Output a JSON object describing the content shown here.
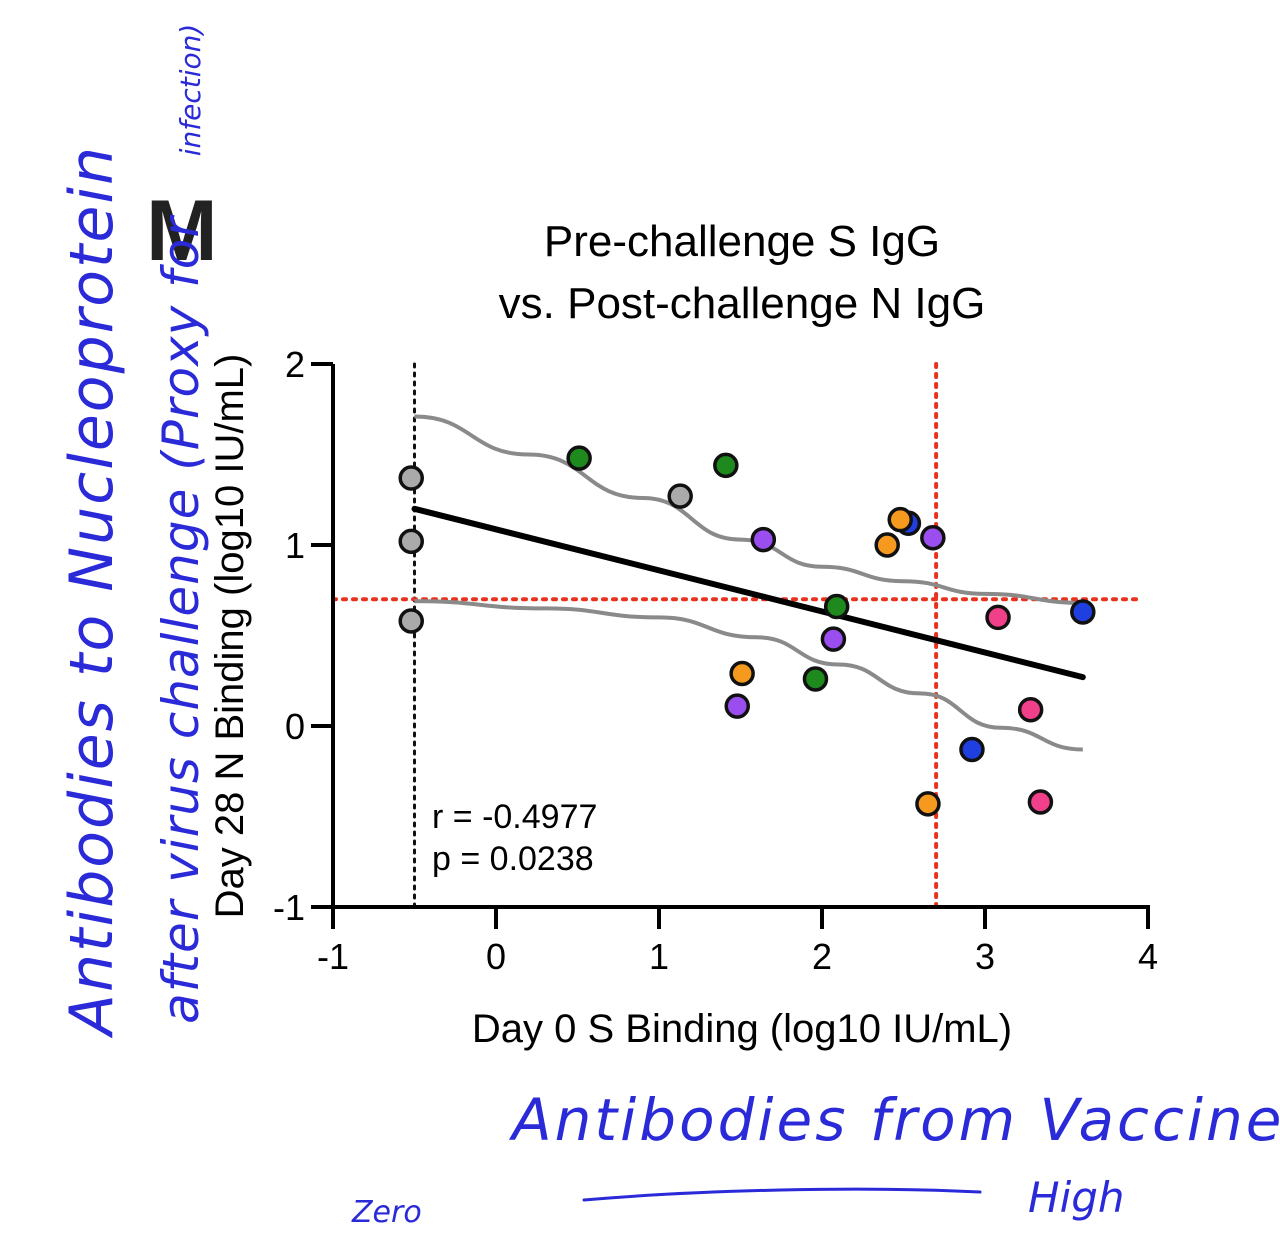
{
  "panel_label": "M",
  "chart_data": {
    "type": "scatter",
    "title_lines": [
      "Pre-challenge S IgG",
      "vs. Post-challenge N IgG"
    ],
    "xlabel": "Day 0 S Binding (log10 IU/mL)",
    "ylabel": "Day 28 N Binding (log10 IU/mL)",
    "xlim": [
      -1,
      4
    ],
    "ylim": [
      -1,
      2
    ],
    "xticks": [
      -1,
      0,
      1,
      2,
      3,
      4
    ],
    "yticks": [
      -1,
      0,
      1,
      2
    ],
    "xtick_labels": [
      "-1",
      "0",
      "1",
      "2",
      "3",
      "4"
    ],
    "ytick_labels": [
      "-1",
      "0",
      "1",
      "2"
    ],
    "stats": [
      "r = -0.4977",
      "p = 0.0238"
    ],
    "reference_lines": {
      "vertical_black_x": -0.5,
      "vertical_red_x": 2.7,
      "horizontal_red_y": 0.7
    },
    "regression": {
      "x": [
        -0.5,
        3.6
      ],
      "y": [
        1.2,
        0.27
      ]
    },
    "ci_upper": {
      "x": [
        -0.5,
        0.2,
        0.9,
        1.5,
        2.0,
        2.5,
        3.0,
        3.6
      ],
      "y": [
        1.71,
        1.5,
        1.26,
        1.03,
        0.88,
        0.8,
        0.73,
        0.68
      ]
    },
    "ci_lower": {
      "x": [
        -0.5,
        0.3,
        1.0,
        1.6,
        2.1,
        2.6,
        3.1,
        3.6
      ],
      "y": [
        0.69,
        0.65,
        0.6,
        0.49,
        0.34,
        0.18,
        -0.01,
        -0.13
      ]
    },
    "points": [
      {
        "x": -0.52,
        "y": 1.37,
        "color": "#aaaaaa"
      },
      {
        "x": -0.52,
        "y": 1.02,
        "color": "#aaaaaa"
      },
      {
        "x": -0.52,
        "y": 0.58,
        "color": "#aaaaaa"
      },
      {
        "x": 0.51,
        "y": 1.48,
        "color": "#1e8a1e"
      },
      {
        "x": 1.13,
        "y": 1.27,
        "color": "#aaaaaa"
      },
      {
        "x": 1.41,
        "y": 1.44,
        "color": "#1e8a1e"
      },
      {
        "x": 1.64,
        "y": 1.03,
        "color": "#9a4ef0"
      },
      {
        "x": 2.09,
        "y": 0.66,
        "color": "#1e8a1e"
      },
      {
        "x": 2.07,
        "y": 0.48,
        "color": "#9a4ef0"
      },
      {
        "x": 1.51,
        "y": 0.29,
        "color": "#f59a1e"
      },
      {
        "x": 1.48,
        "y": 0.11,
        "color": "#9a4ef0"
      },
      {
        "x": 1.96,
        "y": 0.26,
        "color": "#1e8a1e"
      },
      {
        "x": 2.4,
        "y": 1.0,
        "color": "#f59a1e"
      },
      {
        "x": 2.53,
        "y": 1.12,
        "color": "#1f3fe0"
      },
      {
        "x": 2.48,
        "y": 1.14,
        "color": "#f59a1e"
      },
      {
        "x": 2.68,
        "y": 1.04,
        "color": "#9a4ef0"
      },
      {
        "x": 3.08,
        "y": 0.6,
        "color": "#f0408a"
      },
      {
        "x": 3.6,
        "y": 0.63,
        "color": "#1f3fe0"
      },
      {
        "x": 3.28,
        "y": 0.09,
        "color": "#f0408a"
      },
      {
        "x": 2.92,
        "y": -0.13,
        "color": "#1f3fe0"
      },
      {
        "x": 2.65,
        "y": -0.43,
        "color": "#f59a1e"
      },
      {
        "x": 3.34,
        "y": -0.42,
        "color": "#f0408a"
      }
    ]
  },
  "annotations": {
    "left_line1": "Antibodies to Nucleoprotein",
    "left_line2": "after virus challenge (Proxy for",
    "left_line3": "infection)",
    "bottom_main": "Antibodies from Vaccine",
    "zero": "Zero",
    "high": "High"
  }
}
